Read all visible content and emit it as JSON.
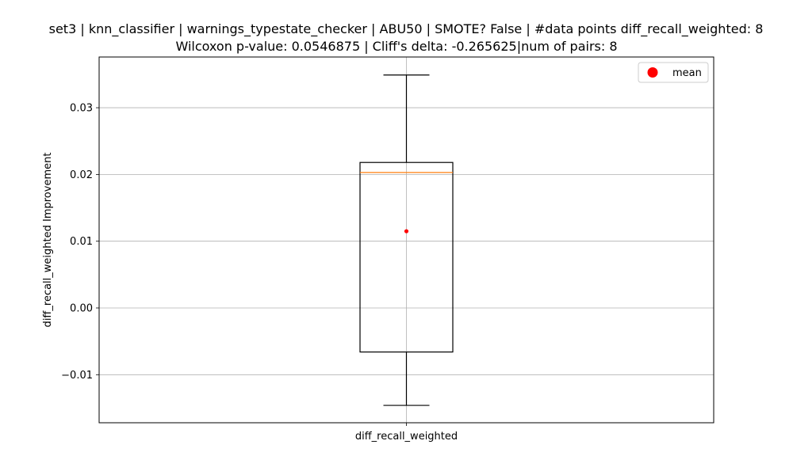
{
  "chart_data": {
    "type": "box",
    "title_lines": [
      "set3 | knn_classifier | warnings_typestate_checker | ABU50 | SMOTE? False | #data points diff_recall_weighted: 8",
      "Wilcoxon p-value: 0.0546875 | Cliff's delta: -0.265625|num of pairs: 8"
    ],
    "xlabel": "diff_recall_weighted",
    "ylabel": "diff_recall_weighted Improvement",
    "categories": [
      "diff_recall_weighted"
    ],
    "ylim": [
      -0.0172,
      0.0376
    ],
    "yticks": [
      -0.01,
      0.0,
      0.01,
      0.02,
      0.03
    ],
    "ytick_labels": [
      "−0.01",
      "0.00",
      "0.01",
      "0.02",
      "0.03"
    ],
    "grid": true,
    "legend": {
      "position": "top-right",
      "entries": [
        {
          "label": "mean",
          "color": "#ff0000",
          "marker": "circle"
        }
      ]
    },
    "box": {
      "whisker_low": -0.0146,
      "q1": -0.0066,
      "median": 0.0203,
      "q3": 0.0218,
      "whisker_high": 0.0349,
      "mean": 0.0115
    },
    "colors": {
      "box": "#000000",
      "median": "#ff7f0e",
      "mean": "#ff0000",
      "grid": "#b0b0b0"
    }
  }
}
